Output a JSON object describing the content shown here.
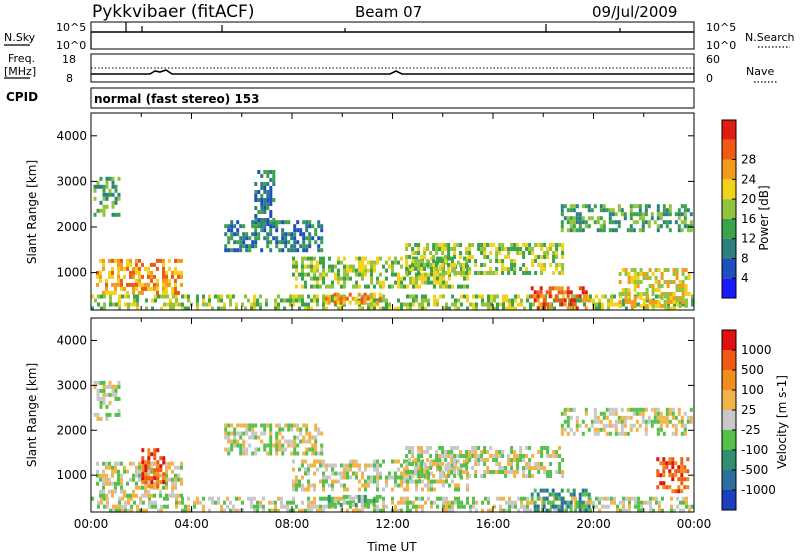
{
  "header": {
    "station": "Pykkvibaer (fitACF)",
    "beam": "Beam 07",
    "date": "09/Jul/2009"
  },
  "top_panels": {
    "nsky_label": "N.Sky",
    "nsky_ticks": [
      "10^5",
      "10^0"
    ],
    "nsearch_label": "N.Search",
    "nsearch_ticks": [
      "10^5",
      "10^0"
    ],
    "freq_label": "Freq.",
    "freq_unit": "[MHz]",
    "freq_ticks": [
      "18",
      "8"
    ],
    "nave_label": "Nave",
    "nave_ticks": [
      "60",
      "0"
    ],
    "cpid_label": "CPID",
    "cpid_text": "normal (fast stereo) 153"
  },
  "chart_data": [
    {
      "type": "heatmap",
      "name": "power",
      "ylabel": "Slant Range [km]",
      "xlabel": "",
      "ylim": [
        180,
        4500
      ],
      "xlim": [
        0,
        24
      ],
      "yticks": [
        "1000",
        "2000",
        "3000",
        "4000"
      ],
      "colorbar": {
        "label": "Power [dB]",
        "ticks": [
          "4",
          "8",
          "12",
          "16",
          "20",
          "24",
          "28"
        ],
        "colors": [
          "#1a1aff",
          "#1f4fbf",
          "#2e7f7f",
          "#3aa24a",
          "#8fc43c",
          "#f2d21a",
          "#f59a1a",
          "#ef5a14",
          "#e11d12"
        ]
      },
      "echo_bands": [
        {
          "t0": 0.0,
          "t1": 23.9,
          "r0": 200,
          "r1": 520,
          "level": 4
        },
        {
          "t0": 0.2,
          "t1": 3.6,
          "r0": 550,
          "r1": 1300,
          "level": 6
        },
        {
          "t0": 0.1,
          "t1": 1.1,
          "r0": 2250,
          "r1": 3100,
          "level": 3
        },
        {
          "t0": 5.3,
          "t1": 9.2,
          "r0": 1450,
          "r1": 2150,
          "level": 2
        },
        {
          "t0": 6.5,
          "t1": 7.3,
          "r0": 2100,
          "r1": 3250,
          "level": 2
        },
        {
          "t0": 8.0,
          "t1": 15.0,
          "r0": 650,
          "r1": 1350,
          "level": 4
        },
        {
          "t0": 9.3,
          "t1": 11.5,
          "r0": 300,
          "r1": 560,
          "level": 6
        },
        {
          "t0": 12.5,
          "t1": 18.8,
          "r0": 950,
          "r1": 1650,
          "level": 4
        },
        {
          "t0": 17.5,
          "t1": 19.8,
          "r0": 250,
          "r1": 700,
          "level": 7
        },
        {
          "t0": 18.7,
          "t1": 23.9,
          "r0": 1950,
          "r1": 2500,
          "level": 3
        },
        {
          "t0": 21.0,
          "t1": 23.8,
          "r0": 250,
          "r1": 1100,
          "level": 5
        }
      ]
    },
    {
      "type": "heatmap",
      "name": "velocity",
      "ylabel": "Slant Range [km]",
      "xlabel": "Time UT",
      "ylim": [
        180,
        4500
      ],
      "xlim": [
        0,
        24
      ],
      "yticks": [
        "1000",
        "2000",
        "3000",
        "4000"
      ],
      "xticks": [
        "00:00",
        "04:00",
        "08:00",
        "12:00",
        "16:00",
        "20:00",
        "00:00"
      ],
      "colorbar": {
        "label": "Velocity [m s-1]",
        "ticks": [
          "1000",
          "500",
          "100",
          "25",
          "-25",
          "-100",
          "-500",
          "-1000"
        ],
        "colors": [
          "#1a3fbf",
          "#2a6fa0",
          "#2f8f6f",
          "#56c14a",
          "#c8c8c8",
          "#f2b34a",
          "#f28c1a",
          "#ef5a14",
          "#e01010"
        ]
      },
      "echo_bands": [
        {
          "t0": 0.0,
          "t1": 23.9,
          "r0": 200,
          "r1": 520,
          "level": 4
        },
        {
          "t0": 0.2,
          "t1": 3.6,
          "r0": 550,
          "r1": 1300,
          "level": 4
        },
        {
          "t0": 2.0,
          "t1": 2.9,
          "r0": 750,
          "r1": 1600,
          "level": 7
        },
        {
          "t0": 0.1,
          "t1": 1.1,
          "r0": 2250,
          "r1": 3100,
          "level": 4
        },
        {
          "t0": 5.3,
          "t1": 9.2,
          "r0": 1450,
          "r1": 2150,
          "level": 4
        },
        {
          "t0": 8.0,
          "t1": 15.0,
          "r0": 650,
          "r1": 1350,
          "level": 4
        },
        {
          "t0": 9.3,
          "t1": 11.5,
          "r0": 300,
          "r1": 560,
          "level": 3
        },
        {
          "t0": 12.5,
          "t1": 18.8,
          "r0": 950,
          "r1": 1650,
          "level": 4
        },
        {
          "t0": 17.5,
          "t1": 19.8,
          "r0": 250,
          "r1": 700,
          "level": 2
        },
        {
          "t0": 18.7,
          "t1": 23.9,
          "r0": 1950,
          "r1": 2500,
          "level": 4
        },
        {
          "t0": 22.5,
          "t1": 23.8,
          "r0": 600,
          "r1": 1400,
          "level": 7
        }
      ]
    }
  ]
}
